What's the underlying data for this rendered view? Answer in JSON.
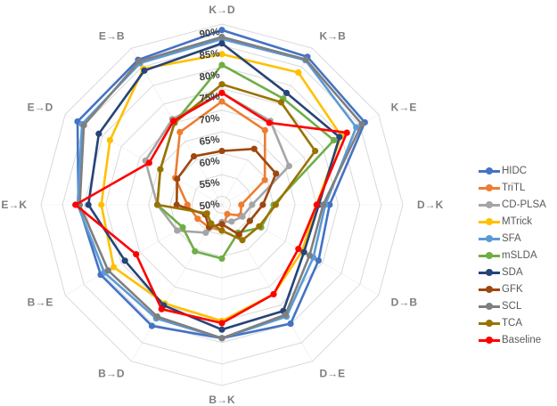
{
  "chart_data": {
    "type": "radar",
    "title": "",
    "categories": [
      "K→D",
      "K→B",
      "K→E",
      "D→K",
      "D→B",
      "D→E",
      "B→K",
      "B→D",
      "B→E",
      "E→K",
      "E→D",
      "E→B"
    ],
    "r_ticks": [
      "50%",
      "55%",
      "60%",
      "65%",
      "70%",
      "75%",
      "80%",
      "85%",
      "90%"
    ],
    "r_tick_values": [
      50,
      55,
      60,
      65,
      70,
      75,
      80,
      85,
      90
    ],
    "rlim": [
      48,
      90
    ],
    "grid": true,
    "legend_position": "right",
    "series": [
      {
        "name": "HIDC",
        "color": "#4472c4",
        "values": [
          88.6,
          87.7,
          86.3,
          73.0,
          73.9,
          79.9,
          79.0,
          80.5,
          80.5,
          81.3,
          86.7,
          86.9
        ]
      },
      {
        "name": "TriTL",
        "color": "#ed7d31",
        "values": [
          72.0,
          68.0,
          59.5,
          52.5,
          53.0,
          50.5,
          54.0,
          54.0,
          54.5,
          56.0,
          60.5,
          67.5
        ]
      },
      {
        "name": "CD-PLSA",
        "color": "#a5a5a5",
        "values": [
          74.0,
          70.5,
          66.0,
          55.0,
          53.5,
          52.5,
          52.0,
          55.5,
          60.0,
          63.0,
          68.5,
          71.0
        ]
      },
      {
        "name": "MTrick",
        "color": "#ffc000",
        "values": [
          83.0,
          83.5,
          80.0,
          70.0,
          69.5,
          72.0,
          75.0,
          74.5,
          77.0,
          76.0,
          78.0,
          84.5
        ]
      },
      {
        "name": "SFA",
        "color": "#5b9bd5",
        "values": [
          86.5,
          86.8,
          84.0,
          72.0,
          72.5,
          78.0,
          79.0,
          78.5,
          79.5,
          81.5,
          85.5,
          86.0
        ]
      },
      {
        "name": "mSLDA",
        "color": "#70ad47",
        "values": [
          80.5,
          76.5,
          78.0,
          60.0,
          58.5,
          55.5,
          60.5,
          60.5,
          58.5,
          63.0,
          64.5,
          70.0
        ]
      },
      {
        "name": "SDA",
        "color": "#264478",
        "values": [
          85.5,
          78.0,
          79.5,
          70.5,
          70.0,
          76.5,
          77.0,
          75.0,
          74.0,
          79.0,
          81.0,
          84.0
        ]
      },
      {
        "name": "GFK",
        "color": "#9e480e",
        "values": [
          60.5,
          63.0,
          62.5,
          57.5,
          55.5,
          56.0,
          52.5,
          54.0,
          52.5,
          58.5,
          60.0,
          61.0
        ]
      },
      {
        "name": "SCL",
        "color": "#7f7f7f",
        "values": [
          87.0,
          87.0,
          85.5,
          71.5,
          71.5,
          77.5,
          79.0,
          78.0,
          78.5,
          81.0,
          85.0,
          86.5
        ]
      },
      {
        "name": "TCA",
        "color": "#997300",
        "values": [
          76.0,
          75.5,
          73.0,
          60.5,
          58.0,
          57.5,
          54.0,
          53.0,
          52.0,
          63.0,
          64.5,
          70.0
        ]
      },
      {
        "name": "Baseline",
        "color": "#ff0000",
        "values": [
          74.0,
          70.0,
          81.5,
          70.0,
          68.5,
          72.0,
          75.5,
          76.0,
          71.0,
          82.0,
          67.5,
          70.5
        ]
      }
    ]
  }
}
